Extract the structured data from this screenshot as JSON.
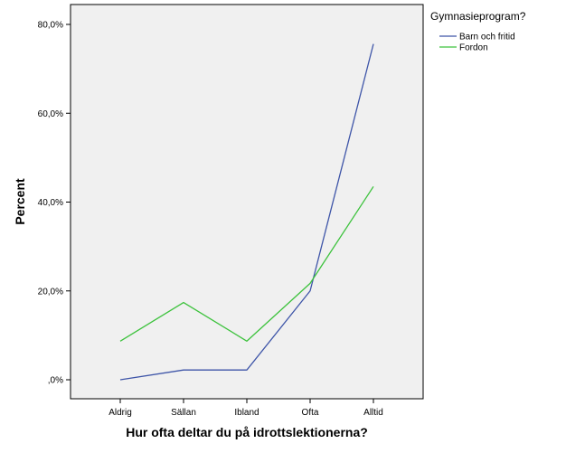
{
  "chart_data": {
    "type": "line",
    "categories": [
      "Aldrig",
      "Sällan",
      "Ibland",
      "Ofta",
      "Alltid"
    ],
    "series": [
      {
        "name": "Barn och fritid",
        "color": "#3e55a8",
        "values": [
          0.0,
          2.2,
          2.2,
          20.0,
          75.6
        ]
      },
      {
        "name": "Fordon",
        "color": "#3cc23c",
        "values": [
          8.7,
          17.4,
          8.7,
          21.7,
          43.5
        ]
      }
    ],
    "xlabel": "Hur ofta deltar du på idrottslektionerna?",
    "ylabel": "Percent",
    "ylim": [
      0,
      80
    ],
    "yticks": [
      0,
      20,
      40,
      60,
      80
    ],
    "ytick_labels": [
      ",0%",
      "20,0%",
      "40,0%",
      "60,0%",
      "80,0%"
    ],
    "legend_title": "Gymnasieprogram?",
    "legend_placement": "top-right, outside plot",
    "plot_background": "#f0f0f0",
    "grid": false
  }
}
